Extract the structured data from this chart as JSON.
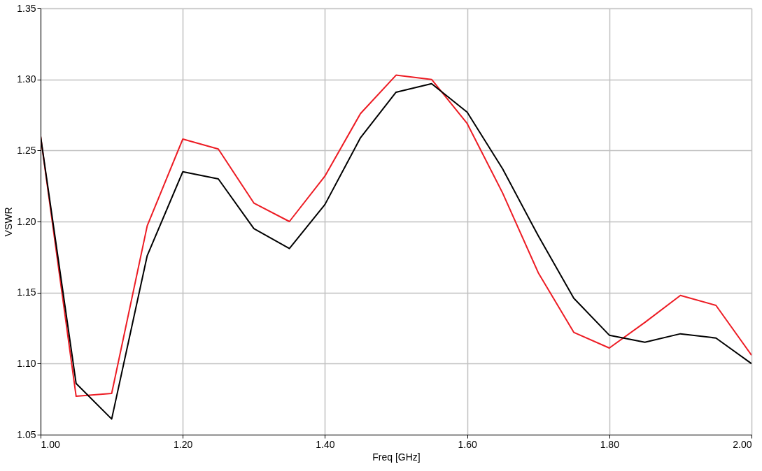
{
  "chart_data": {
    "type": "line",
    "xlabel": "Freq [GHz]",
    "ylabel": "VSWR",
    "x": [
      1.0,
      1.05,
      1.1,
      1.15,
      1.2,
      1.25,
      1.3,
      1.35,
      1.4,
      1.45,
      1.5,
      1.55,
      1.6,
      1.65,
      1.7,
      1.75,
      1.8,
      1.85,
      1.9,
      1.95,
      2.0
    ],
    "series": [
      {
        "color": "#ed1c24",
        "values": [
          1.26,
          1.077,
          1.079,
          1.197,
          1.258,
          1.251,
          1.213,
          1.2,
          1.232,
          1.276,
          1.303,
          1.3,
          1.269,
          1.22,
          1.164,
          1.122,
          1.111,
          1.129,
          1.148,
          1.141,
          1.106
        ]
      },
      {
        "color": "#000000",
        "values": [
          1.26,
          1.086,
          1.061,
          1.176,
          1.235,
          1.23,
          1.195,
          1.181,
          1.212,
          1.259,
          1.291,
          1.297,
          1.277,
          1.237,
          1.19,
          1.146,
          1.12,
          1.115,
          1.121,
          1.118,
          1.1
        ]
      }
    ],
    "xlim": [
      1.0,
      2.0
    ],
    "xticks": [
      {
        "value": 1.0,
        "label": "1.00"
      },
      {
        "value": 1.2,
        "label": "1.20"
      },
      {
        "value": 1.4,
        "label": "1.40"
      },
      {
        "value": 1.6,
        "label": "1.60"
      },
      {
        "value": 1.8,
        "label": "1.80"
      },
      {
        "value": 2.0,
        "label": "2.00"
      }
    ],
    "ylim": [
      1.05,
      1.35
    ],
    "yticks": [
      1.05,
      {
        "value": 1.1,
        "label": "1.10"
      },
      1.15,
      {
        "value": 1.2,
        "label": "1.20"
      },
      1.25,
      {
        "value": 1.3,
        "label": "1.30"
      },
      1.35
    ],
    "grid": true,
    "legend": false,
    "marker": "none",
    "line_style": "solid"
  }
}
